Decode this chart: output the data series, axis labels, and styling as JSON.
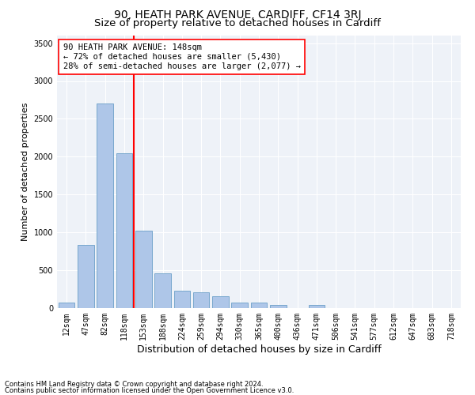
{
  "title": "90, HEATH PARK AVENUE, CARDIFF, CF14 3RJ",
  "subtitle": "Size of property relative to detached houses in Cardiff",
  "xlabel": "Distribution of detached houses by size in Cardiff",
  "ylabel": "Number of detached properties",
  "categories": [
    "12sqm",
    "47sqm",
    "82sqm",
    "118sqm",
    "153sqm",
    "188sqm",
    "224sqm",
    "259sqm",
    "294sqm",
    "330sqm",
    "365sqm",
    "400sqm",
    "436sqm",
    "471sqm",
    "506sqm",
    "541sqm",
    "577sqm",
    "612sqm",
    "647sqm",
    "683sqm",
    "718sqm"
  ],
  "values": [
    75,
    840,
    2700,
    2050,
    1020,
    460,
    230,
    210,
    160,
    75,
    70,
    45,
    0,
    40,
    0,
    0,
    0,
    0,
    0,
    0,
    0
  ],
  "bar_color": "#aec6e8",
  "bar_edge_color": "#6a9fc8",
  "vline_color": "red",
  "vline_position": 3.5,
  "annotation_text": "90 HEATH PARK AVENUE: 148sqm\n← 72% of detached houses are smaller (5,430)\n28% of semi-detached houses are larger (2,077) →",
  "annotation_box_color": "white",
  "annotation_box_edge": "red",
  "ylim": [
    0,
    3600
  ],
  "yticks": [
    0,
    500,
    1000,
    1500,
    2000,
    2500,
    3000,
    3500
  ],
  "footnote1": "Contains HM Land Registry data © Crown copyright and database right 2024.",
  "footnote2": "Contains public sector information licensed under the Open Government Licence v3.0.",
  "background_color": "#eef2f8",
  "title_fontsize": 10,
  "subtitle_fontsize": 9.5,
  "xlabel_fontsize": 9,
  "ylabel_fontsize": 8,
  "tick_fontsize": 7,
  "annotation_fontsize": 7.5,
  "footnote_fontsize": 6
}
